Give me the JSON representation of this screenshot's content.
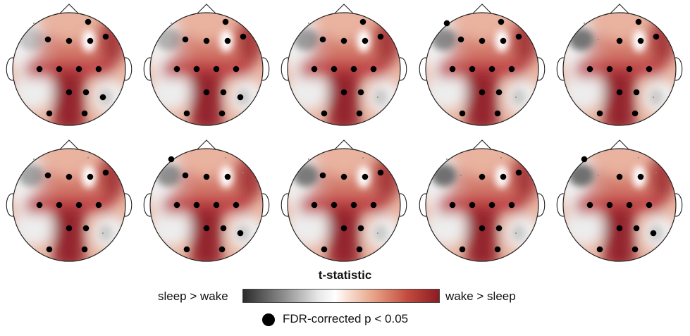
{
  "colorbar": {
    "title": "t-statistic",
    "left_label": "sleep > wake",
    "right_label": "wake > sleep",
    "colors": [
      "#2b2b2b",
      "#8a8a8a",
      "#e6e6e6",
      "#ffffff",
      "#f6d8c8",
      "#e59c80",
      "#c24a3f",
      "#8c1c22"
    ]
  },
  "legend": {
    "marker": "filled-black-circle",
    "label": "FDR-corrected p < 0.05"
  },
  "topomaps": {
    "rows": 2,
    "columns": 5,
    "count": 10
  }
}
